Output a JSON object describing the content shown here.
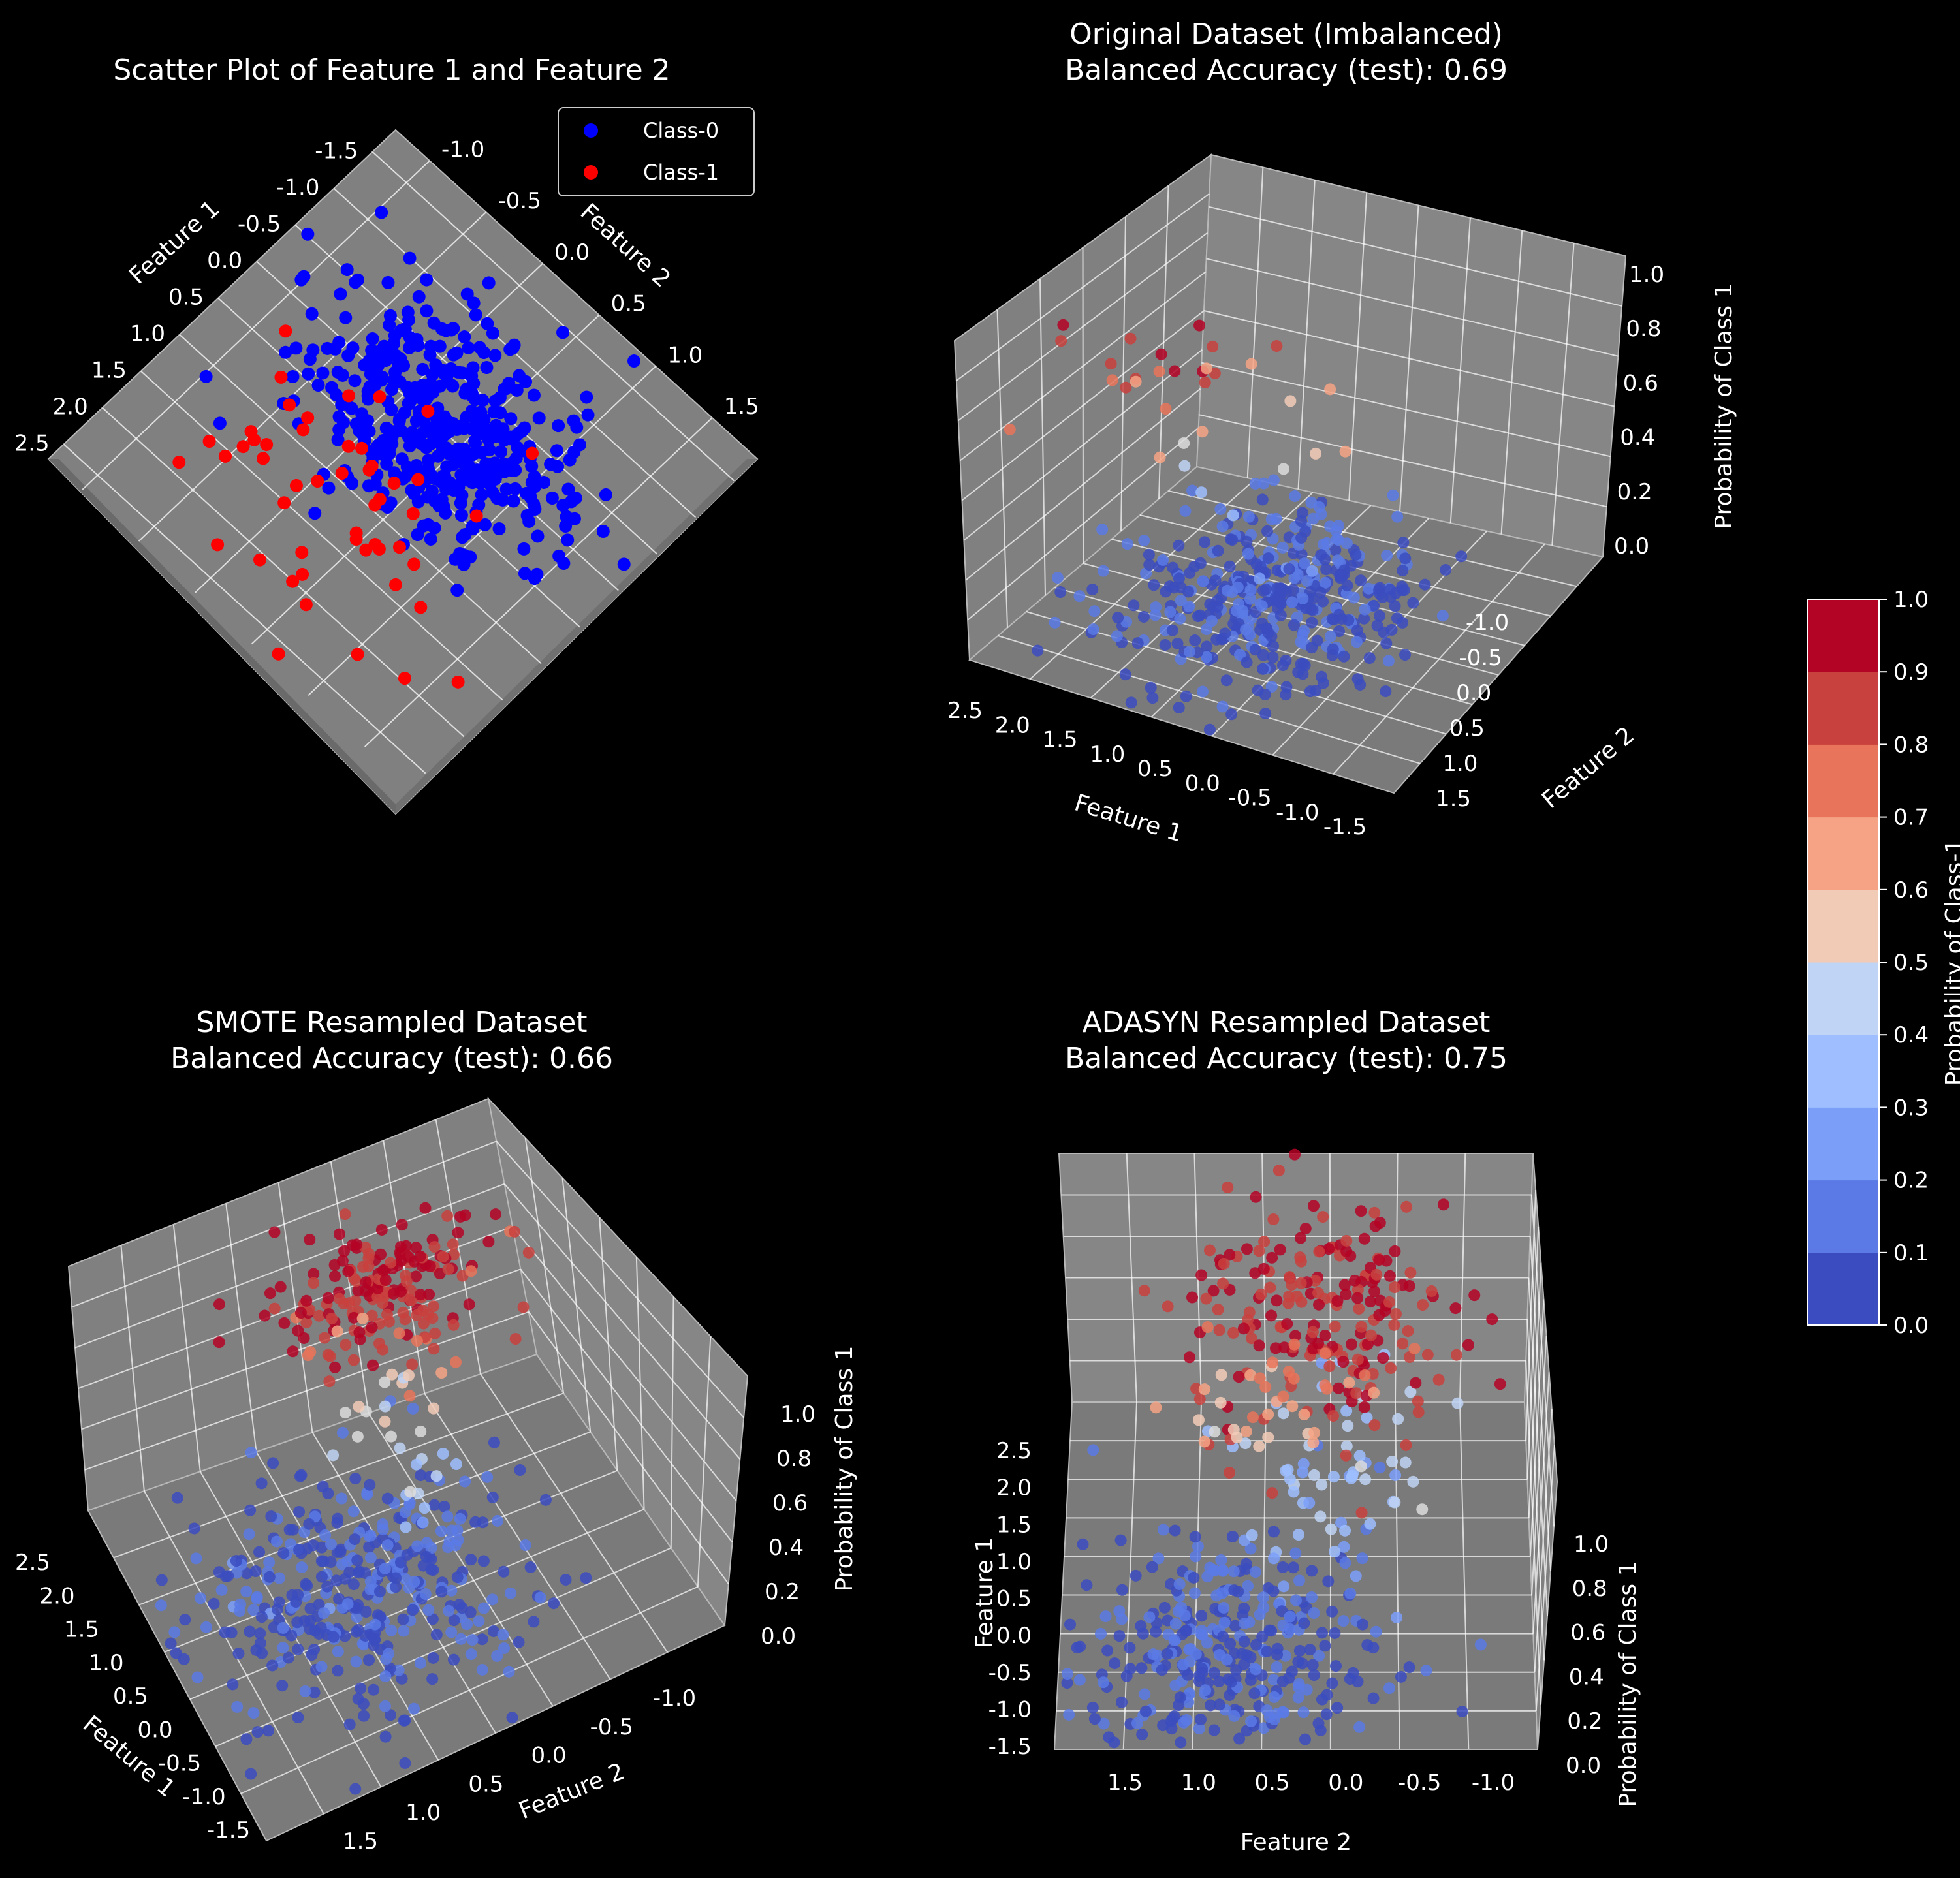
{
  "colors": {
    "background": "#000000",
    "pane": "#808080",
    "grid": "#ffffff",
    "class0": "#0000ff",
    "class1": "#ff0000",
    "cmap": [
      "#3b4cc0",
      "#5b7ae5",
      "#7b9ff9",
      "#9ebeff",
      "#c0d4f5",
      "#dddcdc",
      "#f2cbb7",
      "#f6a385",
      "#e7745b",
      "#c9413e",
      "#b40426"
    ]
  },
  "chart_data": [
    {
      "type": "scatter",
      "title": "Scatter Plot of Feature 1 and Feature 2",
      "xlabel": "Feature 1",
      "ylabel": "Feature 2",
      "xticks": [
        "-1.5",
        "-1.0",
        "-0.5",
        "0.0",
        "0.5",
        "1.0",
        "1.5",
        "2.0",
        "2.5"
      ],
      "yticks": [
        "-1.0",
        "-0.5",
        "0.0",
        "0.5",
        "1.0",
        "1.5"
      ],
      "xlim": [
        -1.8,
        2.7
      ],
      "ylim": [
        -1.3,
        1.9
      ],
      "legend": {
        "position": "top-right",
        "entries": [
          "Class-0",
          "Class-1"
        ]
      },
      "series": [
        {
          "name": "Class-0",
          "color": "#0000ff",
          "note_count": 450,
          "center": [
            0.0,
            0.3
          ],
          "spread": [
            0.5,
            0.5
          ]
        },
        {
          "name": "Class-1",
          "color": "#ff0000",
          "note_count": 50,
          "center": [
            1.3,
            0.3
          ],
          "spread": [
            0.6,
            0.55
          ]
        }
      ]
    },
    {
      "type": "scatter",
      "title": "Original Dataset (Imbalanced)",
      "subtitle": "Balanced Accuracy (test): 0.69",
      "xlabel": "Feature 1",
      "ylabel": "Feature 2",
      "zlabel": "Probability of Class 1",
      "xticks": [
        "2.5",
        "2.0",
        "1.5",
        "1.0",
        "0.5",
        "0.0",
        "-0.5",
        "-1.0",
        "-1.5"
      ],
      "yticks": [
        "-1.0",
        "-0.5",
        "0.0",
        "0.5",
        "1.0",
        "1.5"
      ],
      "zticks": [
        "0.0",
        "0.2",
        "0.4",
        "0.6",
        "0.8",
        "1.0"
      ],
      "zlim": [
        0,
        1
      ]
    },
    {
      "type": "scatter",
      "title": "SMOTE Resampled Dataset",
      "subtitle": "Balanced Accuracy (test): 0.66",
      "xlabel": "Feature 1",
      "ylabel": "Feature 2",
      "zlabel": "Probability of Class 1",
      "xticks": [
        "2.5",
        "2.0",
        "1.5",
        "1.0",
        "0.5",
        "0.0",
        "-0.5",
        "-1.0",
        "-1.5"
      ],
      "yticks": [
        "1.5",
        "1.0",
        "0.5",
        "0.0",
        "-0.5",
        "-1.0"
      ],
      "zticks": [
        "0.0",
        "0.2",
        "0.4",
        "0.6",
        "0.8",
        "1.0"
      ],
      "zlim": [
        0,
        1
      ]
    },
    {
      "type": "scatter",
      "title": "ADASYN Resampled Dataset",
      "subtitle": "Balanced Accuracy (test): 0.75",
      "xlabel": "Feature 1",
      "ylabel": "Feature 2",
      "zlabel": "Probability of Class 1",
      "xticks": [
        "2.5",
        "2.0",
        "1.5",
        "1.0",
        "0.5",
        "0.0",
        "-0.5",
        "-1.0",
        "-1.5"
      ],
      "yticks": [
        "1.5",
        "1.0",
        "0.5",
        "0.0",
        "-0.5",
        "-1.0"
      ],
      "zticks": [
        "0.0",
        "0.2",
        "0.4",
        "0.6",
        "0.8",
        "1.0"
      ],
      "zlim": [
        0,
        1
      ]
    }
  ],
  "colorbar": {
    "label": "Probability of Class-1",
    "ticks": [
      "0.0",
      "0.1",
      "0.2",
      "0.3",
      "0.4",
      "0.5",
      "0.6",
      "0.7",
      "0.8",
      "0.9",
      "1.0"
    ],
    "range": [
      0,
      1
    ]
  }
}
